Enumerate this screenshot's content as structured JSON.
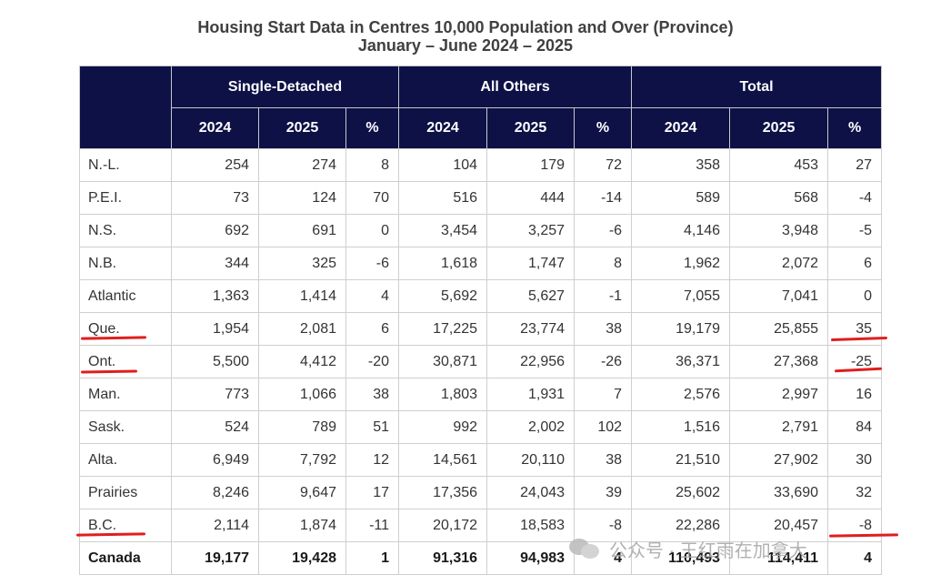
{
  "title": {
    "line1": "Housing Start Data in Centres 10,000 Population and Over (Province)",
    "line2": "January – June 2024 – 2025"
  },
  "header": {
    "groups": [
      "Single-Detached",
      "All Others",
      "Total"
    ],
    "subcols": [
      "2024",
      "2025",
      "%",
      "2024",
      "2025",
      "%",
      "2024",
      "2025",
      "%"
    ]
  },
  "rows": [
    {
      "name": "N.-L.",
      "values": [
        "254",
        "274",
        "8",
        "104",
        "179",
        "72",
        "358",
        "453",
        "27"
      ]
    },
    {
      "name": "P.E.I.",
      "values": [
        "73",
        "124",
        "70",
        "516",
        "444",
        "-14",
        "589",
        "568",
        "-4"
      ]
    },
    {
      "name": "N.S.",
      "values": [
        "692",
        "691",
        "0",
        "3,454",
        "3,257",
        "-6",
        "4,146",
        "3,948",
        "-5"
      ]
    },
    {
      "name": "N.B.",
      "values": [
        "344",
        "325",
        "-6",
        "1,618",
        "1,747",
        "8",
        "1,962",
        "2,072",
        "6"
      ]
    },
    {
      "name": "Atlantic",
      "values": [
        "1,363",
        "1,414",
        "4",
        "5,692",
        "5,627",
        "-1",
        "7,055",
        "7,041",
        "0"
      ]
    },
    {
      "name": "Que.",
      "values": [
        "1,954",
        "2,081",
        "6",
        "17,225",
        "23,774",
        "38",
        "19,179",
        "25,855",
        "35"
      ]
    },
    {
      "name": "Ont.",
      "values": [
        "5,500",
        "4,412",
        "-20",
        "30,871",
        "22,956",
        "-26",
        "36,371",
        "27,368",
        "-25"
      ]
    },
    {
      "name": "Man.",
      "values": [
        "773",
        "1,066",
        "38",
        "1,803",
        "1,931",
        "7",
        "2,576",
        "2,997",
        "16"
      ]
    },
    {
      "name": "Sask.",
      "values": [
        "524",
        "789",
        "51",
        "992",
        "2,002",
        "102",
        "1,516",
        "2,791",
        "84"
      ]
    },
    {
      "name": "Alta.",
      "values": [
        "6,949",
        "7,792",
        "12",
        "14,561",
        "20,110",
        "38",
        "21,510",
        "27,902",
        "30"
      ]
    },
    {
      "name": "Prairies",
      "values": [
        "8,246",
        "9,647",
        "17",
        "17,356",
        "24,043",
        "39",
        "25,602",
        "33,690",
        "32"
      ]
    },
    {
      "name": "B.C.",
      "values": [
        "2,114",
        "1,874",
        "-11",
        "20,172",
        "18,583",
        "-8",
        "22,286",
        "20,457",
        "-8"
      ]
    }
  ],
  "total": {
    "name": "Canada",
    "values": [
      "19,177",
      "19,428",
      "1",
      "91,316",
      "94,983",
      "4",
      "110,493",
      "114,411",
      "4"
    ]
  },
  "watermark": {
    "text": "公众号 · 王红雨在加拿大"
  },
  "colors": {
    "header_bg": "#0d1146",
    "mark": "#e01e1e"
  }
}
